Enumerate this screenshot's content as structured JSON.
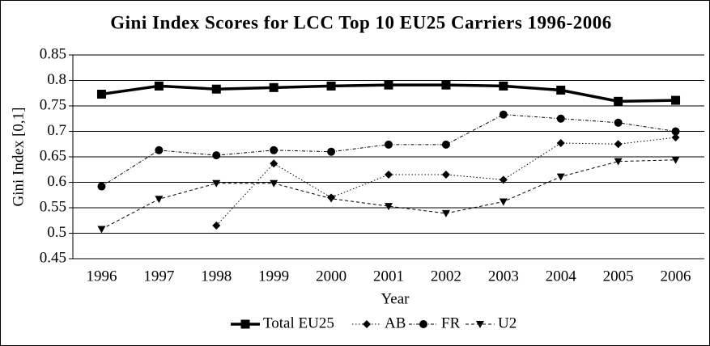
{
  "chart_data": {
    "type": "line",
    "title": "Gini Index Scores for LCC Top 10 EU25 Carriers 1996-2006",
    "x_label": "Year",
    "y_label": "Gini Index [0,1]",
    "categories": [
      "1996",
      "1997",
      "1998",
      "1999",
      "2000",
      "2001",
      "2002",
      "2003",
      "2004",
      "2005",
      "2006"
    ],
    "ylim": [
      0.45,
      0.85
    ],
    "yticks": [
      0.45,
      0.5,
      0.55,
      0.6,
      0.65,
      0.7,
      0.75,
      0.8,
      0.85
    ],
    "grid": true,
    "legend": "bottom",
    "series": [
      {
        "name": "Total EU25",
        "color": "#000000",
        "marker": "square",
        "dash": "solid",
        "width": 3.5,
        "values": [
          0.773,
          0.789,
          0.783,
          0.786,
          0.789,
          0.791,
          0.791,
          0.789,
          0.781,
          0.759,
          0.761
        ]
      },
      {
        "name": "AB",
        "color": "#000000",
        "marker": "diamond",
        "dash": "dotted",
        "width": 1,
        "values": [
          null,
          null,
          0.515,
          0.637,
          0.57,
          0.615,
          0.615,
          0.605,
          0.677,
          0.675,
          0.688
        ]
      },
      {
        "name": "FR",
        "color": "#000000",
        "marker": "circle",
        "dash": "dashdot",
        "width": 1,
        "values": [
          0.592,
          0.663,
          0.653,
          0.663,
          0.66,
          0.674,
          0.674,
          0.733,
          0.725,
          0.717,
          0.7
        ]
      },
      {
        "name": "U2",
        "color": "#000000",
        "marker": "triangle-down",
        "dash": "dashed",
        "width": 1,
        "values": [
          0.508,
          0.567,
          0.598,
          0.598,
          0.568,
          0.553,
          0.539,
          0.562,
          0.611,
          0.641,
          0.644
        ]
      }
    ]
  }
}
